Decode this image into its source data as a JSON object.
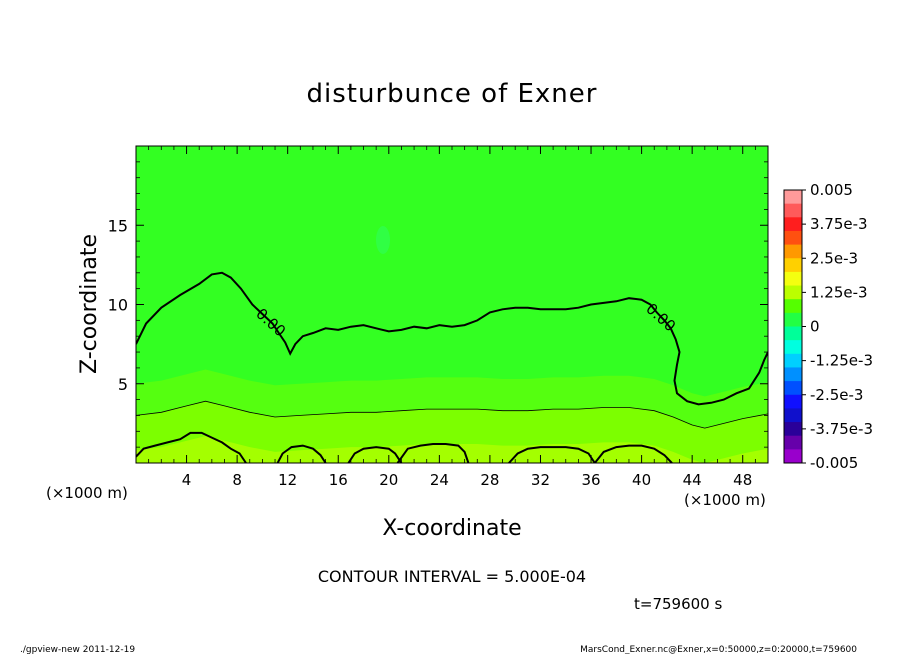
{
  "chart_data": {
    "type": "contour",
    "title": "disturbunce of Exner",
    "xlabel": "X-coordinate",
    "ylabel": "Z-coordinate",
    "x_unit": "(×1000 m)",
    "x_unit_right": "(×1000 m)",
    "y_unit": "(×1000 m)",
    "xlim": [
      0,
      50
    ],
    "ylim": [
      0,
      20
    ],
    "x_ticks": [
      4,
      8,
      12,
      16,
      20,
      24,
      28,
      32,
      36,
      40,
      44,
      48
    ],
    "y_ticks": [
      5,
      10,
      15
    ],
    "contour_interval_text": "CONTOUR INTERVAL = 5.000E-04",
    "time_text": "t=759600 s",
    "contour_labels": [
      "0.00",
      "0.00"
    ],
    "zero_contour_upper": [
      [
        0,
        7.5
      ],
      [
        0.8,
        8.8
      ],
      [
        2,
        9.8
      ],
      [
        3.5,
        10.6
      ],
      [
        5,
        11.3
      ],
      [
        6,
        11.9
      ],
      [
        6.8,
        12.0
      ],
      [
        7.5,
        11.7
      ],
      [
        8.3,
        11.0
      ],
      [
        9.2,
        10.0
      ],
      [
        10,
        9.4
      ],
      [
        10.8,
        8.8
      ],
      [
        11.3,
        8.2
      ],
      [
        11.8,
        7.6
      ],
      [
        12.2,
        6.9
      ],
      [
        12.6,
        7.5
      ],
      [
        13.2,
        8.0
      ],
      [
        14,
        8.2
      ],
      [
        15,
        8.5
      ],
      [
        16,
        8.4
      ],
      [
        17,
        8.6
      ],
      [
        18,
        8.7
      ],
      [
        19,
        8.5
      ],
      [
        20,
        8.3
      ],
      [
        21,
        8.4
      ],
      [
        22,
        8.6
      ],
      [
        23,
        8.5
      ],
      [
        24,
        8.7
      ],
      [
        25,
        8.6
      ],
      [
        26,
        8.7
      ],
      [
        27,
        9.0
      ],
      [
        28,
        9.5
      ],
      [
        29,
        9.7
      ],
      [
        30,
        9.8
      ],
      [
        31,
        9.8
      ],
      [
        32,
        9.7
      ],
      [
        33,
        9.7
      ],
      [
        34,
        9.7
      ],
      [
        35,
        9.8
      ],
      [
        36,
        10.0
      ],
      [
        37,
        10.1
      ],
      [
        38,
        10.2
      ],
      [
        39,
        10.4
      ],
      [
        40,
        10.3
      ],
      [
        40.7,
        10.0
      ],
      [
        41.2,
        9.5
      ],
      [
        41.8,
        9.0
      ],
      [
        42.3,
        8.5
      ],
      [
        42.7,
        7.8
      ],
      [
        43.0,
        7.0
      ],
      [
        42.8,
        6.2
      ],
      [
        42.6,
        5.2
      ],
      [
        42.8,
        4.4
      ],
      [
        43.6,
        3.9
      ],
      [
        44.5,
        3.7
      ],
      [
        45.5,
        3.8
      ],
      [
        46.5,
        4.0
      ],
      [
        47.5,
        4.4
      ],
      [
        48.5,
        4.7
      ],
      [
        49.3,
        5.7
      ],
      [
        49.7,
        6.5
      ],
      [
        50,
        7.0
      ]
    ],
    "zero_contour_lower": [
      [
        [
          0,
          0.4
        ],
        [
          0.6,
          0.9
        ],
        [
          1.5,
          1.1
        ],
        [
          2.5,
          1.3
        ],
        [
          3.5,
          1.5
        ],
        [
          4.3,
          1.9
        ],
        [
          5.2,
          1.9
        ],
        [
          6,
          1.6
        ],
        [
          6.8,
          1.3
        ],
        [
          7.5,
          0.9
        ],
        [
          8.2,
          0.6
        ],
        [
          8.7,
          0
        ]
      ],
      [
        [
          11.2,
          0
        ],
        [
          11.6,
          0.6
        ],
        [
          12.3,
          1.0
        ],
        [
          13.2,
          1.1
        ],
        [
          14,
          0.9
        ],
        [
          14.6,
          0.5
        ],
        [
          15,
          0
        ]
      ],
      [
        [
          16.8,
          0
        ],
        [
          17.3,
          0.6
        ],
        [
          18,
          0.9
        ],
        [
          19,
          1.0
        ],
        [
          20,
          0.9
        ],
        [
          20.5,
          0.6
        ],
        [
          21,
          0
        ]
      ],
      [
        [
          20.7,
          0
        ],
        [
          21.5,
          0.9
        ],
        [
          22.5,
          1.1
        ],
        [
          23.5,
          1.2
        ],
        [
          24.5,
          1.2
        ],
        [
          25.5,
          1.1
        ],
        [
          26,
          0.7
        ],
        [
          26.3,
          0
        ]
      ],
      [
        [
          29.5,
          0
        ],
        [
          30.2,
          0.6
        ],
        [
          31,
          0.9
        ],
        [
          32,
          1.0
        ],
        [
          33,
          1.0
        ],
        [
          34,
          1.0
        ],
        [
          35,
          0.9
        ],
        [
          35.8,
          0.6
        ],
        [
          36.3,
          0
        ]
      ],
      [
        [
          36.3,
          0
        ],
        [
          37,
          0.7
        ],
        [
          38,
          1.0
        ],
        [
          39,
          1.1
        ],
        [
          40,
          1.1
        ],
        [
          41,
          0.9
        ],
        [
          41.8,
          0.5
        ],
        [
          42.4,
          0
        ]
      ]
    ],
    "neg_contour": [
      [
        0,
        3.0
      ],
      [
        2,
        3.2
      ],
      [
        4,
        3.6
      ],
      [
        5.5,
        3.9
      ],
      [
        7,
        3.6
      ],
      [
        9,
        3.2
      ],
      [
        11,
        2.9
      ],
      [
        13,
        3.0
      ],
      [
        15,
        3.1
      ],
      [
        17,
        3.2
      ],
      [
        19,
        3.2
      ],
      [
        21,
        3.3
      ],
      [
        23,
        3.4
      ],
      [
        25,
        3.4
      ],
      [
        27,
        3.4
      ],
      [
        29,
        3.3
      ],
      [
        31,
        3.3
      ],
      [
        33,
        3.4
      ],
      [
        35,
        3.4
      ],
      [
        37,
        3.5
      ],
      [
        39,
        3.5
      ],
      [
        41,
        3.3
      ],
      [
        42.5,
        2.9
      ],
      [
        44,
        2.4
      ],
      [
        45,
        2.2
      ],
      [
        46.5,
        2.5
      ],
      [
        48,
        2.8
      ],
      [
        50,
        3.1
      ]
    ],
    "colorbar": {
      "tick_labels": [
        "0.005",
        "3.75e-3",
        "2.5e-3",
        "1.25e-3",
        "0",
        "-1.25e-3",
        "-2.5e-3",
        "-3.75e-3",
        "-0.005"
      ],
      "colors": [
        "#ff9a9a",
        "#ff5a5a",
        "#ff1e1e",
        "#ff5010",
        "#ff9900",
        "#ffd000",
        "#f4ff10",
        "#bbff00",
        "#55ff00",
        "#22ff44",
        "#00ff99",
        "#00ffe0",
        "#00d0ff",
        "#0090ff",
        "#0050ff",
        "#1010ff",
        "#1010cc",
        "#2a0099",
        "#6600aa",
        "#9900cc"
      ]
    }
  },
  "footer": {
    "left": "./gpview-new   2011-12-19",
    "right": "MarsCond_Exner.nc@Exner,x=0:50000,z=0:20000,t=759600"
  }
}
